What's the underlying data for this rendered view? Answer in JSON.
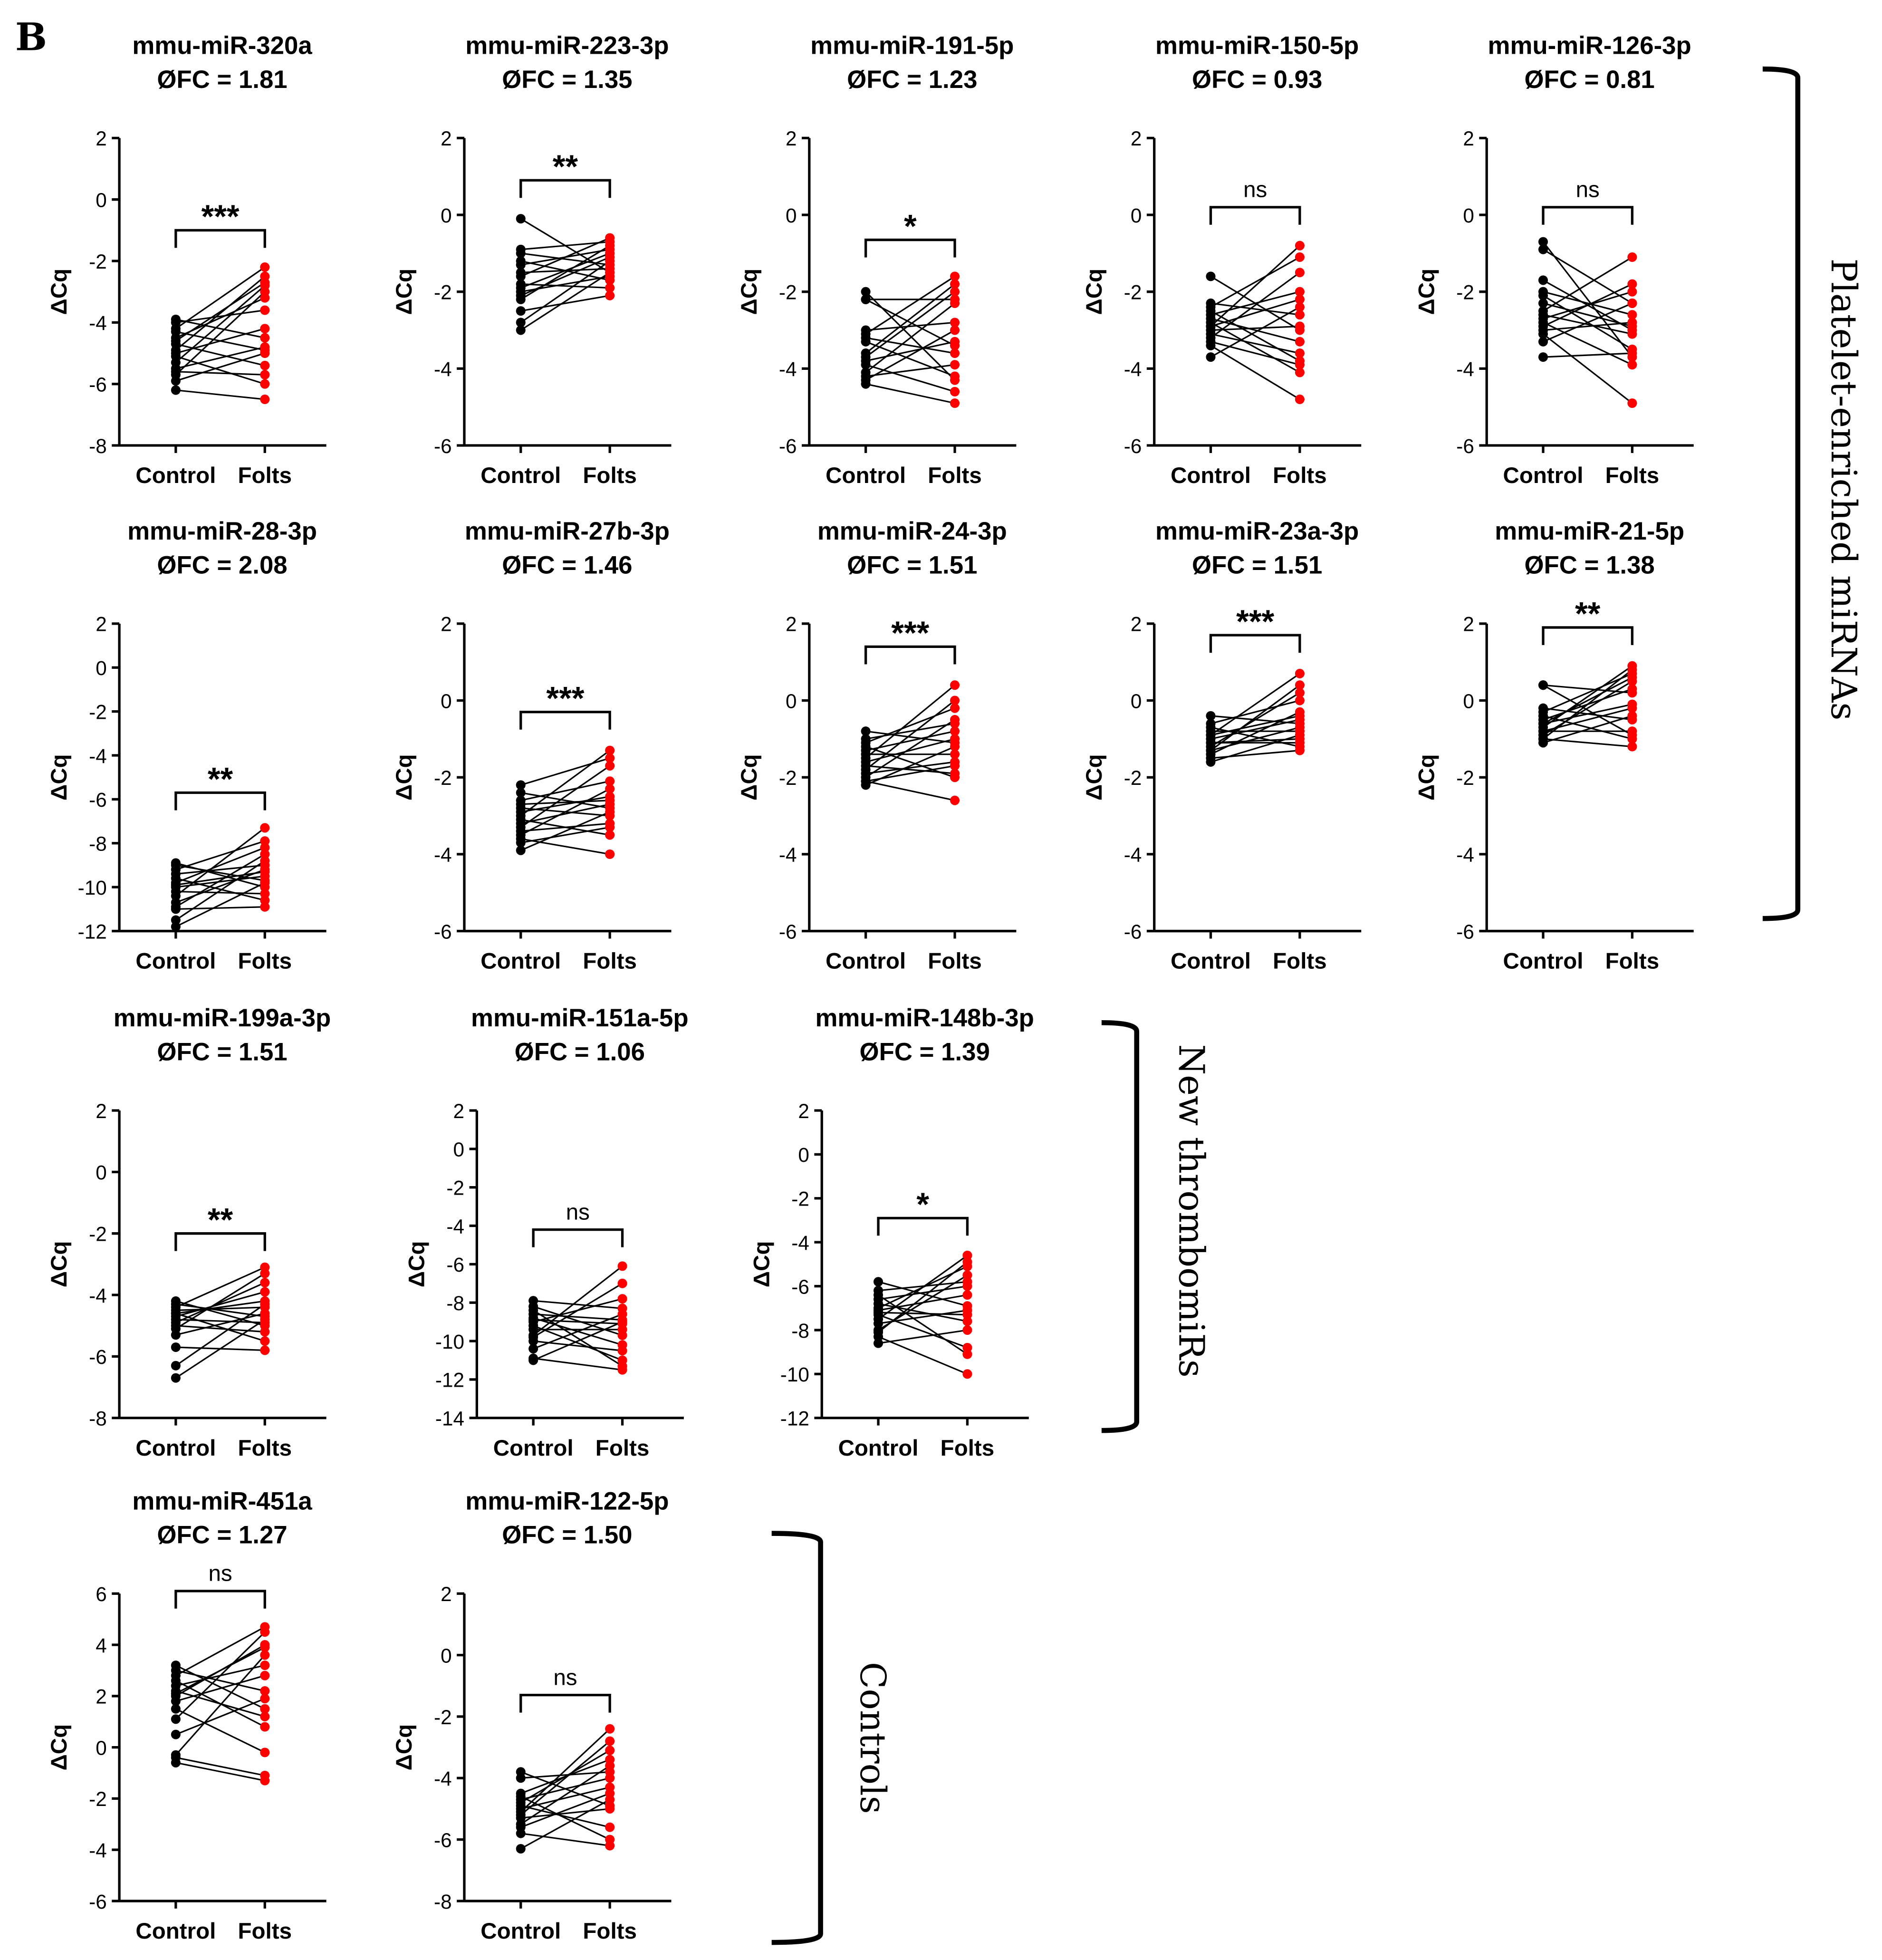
{
  "panel_label": "B",
  "colors": {
    "control": "#000000",
    "folts": "#ff0000",
    "line": "#000000"
  },
  "groups": [
    {
      "label": "Platelet-enriched miRNAs"
    },
    {
      "label": "New thrombomiRs"
    },
    {
      "label": "Controls"
    }
  ],
  "chart_data": [
    {
      "type": "scatter",
      "title": "mmu-miR-320a",
      "subtitle": "ØFC = 1.81",
      "ylabel": "ΔCq",
      "categories": [
        "Control",
        "Folts"
      ],
      "ylim": [
        -8,
        2
      ],
      "yticks": [
        2,
        0,
        -2,
        -4,
        -6,
        -8
      ],
      "significance": "***",
      "bracket_y": -1.0,
      "pairs": [
        [
          -6.2,
          -6.5
        ],
        [
          -5.9,
          -5.0
        ],
        [
          -5.7,
          -3.0
        ],
        [
          -5.5,
          -4.8
        ],
        [
          -5.3,
          -2.8
        ],
        [
          -5.1,
          -6.0
        ],
        [
          -5.0,
          -4.2
        ],
        [
          -4.9,
          -2.5
        ],
        [
          -4.7,
          -5.4
        ],
        [
          -4.5,
          -3.2
        ],
        [
          -4.3,
          -4.9
        ],
        [
          -4.2,
          -2.2
        ],
        [
          -4.0,
          -3.6
        ],
        [
          -3.9,
          -4.5
        ],
        [
          -5.6,
          -5.7
        ],
        [
          -4.6,
          -2.7
        ]
      ]
    },
    {
      "type": "scatter",
      "title": "mmu-miR-223-3p",
      "subtitle": "ØFC = 1.35",
      "ylabel": "ΔCq",
      "categories": [
        "Control",
        "Folts"
      ],
      "ylim": [
        -6,
        2
      ],
      "yticks": [
        2,
        0,
        -2,
        -4,
        -6
      ],
      "significance": "**",
      "bracket_y": 0.9,
      "pairs": [
        [
          -3.0,
          -1.5
        ],
        [
          -2.8,
          -1.2
        ],
        [
          -2.5,
          -2.1
        ],
        [
          -2.2,
          -0.8
        ],
        [
          -2.0,
          -1.6
        ],
        [
          -1.9,
          -1.0
        ],
        [
          -1.8,
          -1.9
        ],
        [
          -1.6,
          -0.6
        ],
        [
          -1.5,
          -1.4
        ],
        [
          -1.3,
          -0.9
        ],
        [
          -1.2,
          -1.7
        ],
        [
          -1.0,
          -1.3
        ],
        [
          -0.9,
          -0.7
        ],
        [
          -0.1,
          -1.5
        ],
        [
          -2.1,
          -1.1
        ]
      ]
    },
    {
      "type": "scatter",
      "title": "mmu-miR-191-5p",
      "subtitle": "ØFC = 1.23",
      "ylabel": "ΔCq",
      "categories": [
        "Control",
        "Folts"
      ],
      "ylim": [
        -6,
        2
      ],
      "yticks": [
        2,
        0,
        -2,
        -4,
        -6
      ],
      "significance": "*",
      "bracket_y": -0.65,
      "pairs": [
        [
          -4.4,
          -4.9
        ],
        [
          -4.3,
          -3.0
        ],
        [
          -4.1,
          -2.3
        ],
        [
          -3.9,
          -4.6
        ],
        [
          -3.8,
          -3.3
        ],
        [
          -3.7,
          -2.0
        ],
        [
          -3.3,
          -4.2
        ],
        [
          -3.2,
          -3.6
        ],
        [
          -3.1,
          -1.6
        ],
        [
          -3.0,
          -2.8
        ],
        [
          -2.2,
          -3.4
        ],
        [
          -2.0,
          -4.3
        ],
        [
          -2.2,
          -2.2
        ],
        [
          -3.6,
          -1.8
        ],
        [
          -4.2,
          -3.9
        ]
      ]
    },
    {
      "type": "scatter",
      "title": "mmu-miR-150-5p",
      "subtitle": "ØFC = 0.93",
      "ylabel": "ΔCq",
      "categories": [
        "Control",
        "Folts"
      ],
      "ylim": [
        -6,
        2
      ],
      "yticks": [
        2,
        0,
        -2,
        -4,
        -6
      ],
      "significance": "ns",
      "bracket_y": 0.2,
      "pairs": [
        [
          -3.7,
          -2.4
        ],
        [
          -3.4,
          -4.8
        ],
        [
          -3.2,
          -1.5
        ],
        [
          -3.1,
          -3.6
        ],
        [
          -3.0,
          -2.9
        ],
        [
          -2.9,
          -0.8
        ],
        [
          -2.8,
          -4.1
        ],
        [
          -2.7,
          -3.3
        ],
        [
          -2.6,
          -2.0
        ],
        [
          -2.5,
          -3.8
        ],
        [
          -2.4,
          -1.1
        ],
        [
          -2.3,
          -2.6
        ],
        [
          -1.6,
          -3.0
        ],
        [
          -3.3,
          -3.9
        ],
        [
          -2.9,
          -2.2
        ]
      ]
    },
    {
      "type": "scatter",
      "title": "mmu-miR-126-3p",
      "subtitle": "ØFC = 0.81",
      "ylabel": "ΔCq",
      "categories": [
        "Control",
        "Folts"
      ],
      "ylim": [
        -6,
        2
      ],
      "yticks": [
        2,
        0,
        -2,
        -4,
        -6
      ],
      "significance": "ns",
      "bracket_y": 0.2,
      "pairs": [
        [
          -3.7,
          -3.6
        ],
        [
          -3.3,
          -2.3
        ],
        [
          -3.1,
          -4.9
        ],
        [
          -3.0,
          -2.8
        ],
        [
          -2.9,
          -1.8
        ],
        [
          -2.8,
          -3.9
        ],
        [
          -2.6,
          -3.1
        ],
        [
          -2.5,
          -1.1
        ],
        [
          -2.3,
          -2.9
        ],
        [
          -2.1,
          -3.5
        ],
        [
          -2.0,
          -2.6
        ],
        [
          -1.7,
          -3.0
        ],
        [
          -0.9,
          -2.3
        ],
        [
          -0.7,
          -3.7
        ],
        [
          -2.7,
          -2.0
        ]
      ]
    },
    {
      "type": "scatter",
      "title": "mmu-miR-28-3p",
      "subtitle": "ØFC = 2.08",
      "ylabel": "ΔCq",
      "categories": [
        "Control",
        "Folts"
      ],
      "ylim": [
        -12,
        2
      ],
      "yticks": [
        2,
        0,
        -2,
        -4,
        -6,
        -8,
        -10,
        -12
      ],
      "significance": "**",
      "bracket_y": -5.7,
      "pairs": [
        [
          -11.8,
          -9.8
        ],
        [
          -11.5,
          -8.8
        ],
        [
          -11.0,
          -10.9
        ],
        [
          -10.7,
          -9.2
        ],
        [
          -10.4,
          -7.3
        ],
        [
          -10.2,
          -10.3
        ],
        [
          -10.0,
          -9.5
        ],
        [
          -9.8,
          -8.2
        ],
        [
          -9.6,
          -10.6
        ],
        [
          -9.4,
          -9.0
        ],
        [
          -9.2,
          -7.9
        ],
        [
          -9.0,
          -9.7
        ],
        [
          -8.9,
          -10.0
        ],
        [
          -10.9,
          -8.5
        ],
        [
          -9.9,
          -9.3
        ]
      ]
    },
    {
      "type": "scatter",
      "title": "mmu-miR-27b-3p",
      "subtitle": "ØFC = 1.46",
      "ylabel": "ΔCq",
      "categories": [
        "Control",
        "Folts"
      ],
      "ylim": [
        -6,
        2
      ],
      "yticks": [
        2,
        0,
        -2,
        -4,
        -6
      ],
      "significance": "***",
      "bracket_y": -0.3,
      "pairs": [
        [
          -3.9,
          -2.9
        ],
        [
          -3.6,
          -4.0
        ],
        [
          -3.5,
          -2.3
        ],
        [
          -3.4,
          -3.2
        ],
        [
          -3.3,
          -1.7
        ],
        [
          -3.2,
          -2.7
        ],
        [
          -3.1,
          -3.5
        ],
        [
          -3.0,
          -1.3
        ],
        [
          -2.9,
          -2.5
        ],
        [
          -2.8,
          -3.0
        ],
        [
          -2.6,
          -2.1
        ],
        [
          -2.4,
          -2.8
        ],
        [
          -2.2,
          -1.5
        ],
        [
          -3.7,
          -3.3
        ],
        [
          -2.7,
          -2.6
        ]
      ]
    },
    {
      "type": "scatter",
      "title": "mmu-miR-24-3p",
      "subtitle": "ØFC = 1.51",
      "ylabel": "ΔCq",
      "categories": [
        "Control",
        "Folts"
      ],
      "ylim": [
        -6,
        2
      ],
      "yticks": [
        2,
        0,
        -2,
        -4,
        -6
      ],
      "significance": "***",
      "bracket_y": 1.4,
      "pairs": [
        [
          -2.2,
          -1.2
        ],
        [
          -2.1,
          -2.6
        ],
        [
          -2.0,
          -0.5
        ],
        [
          -1.9,
          -1.6
        ],
        [
          -1.8,
          0.0
        ],
        [
          -1.7,
          -1.9
        ],
        [
          -1.6,
          -1.0
        ],
        [
          -1.5,
          0.4
        ],
        [
          -1.4,
          -1.4
        ],
        [
          -1.3,
          -0.8
        ],
        [
          -1.2,
          -2.0
        ],
        [
          -1.1,
          -0.2
        ],
        [
          -0.8,
          -1.1
        ],
        [
          -2.1,
          -1.7
        ],
        [
          -1.0,
          -0.6
        ]
      ]
    },
    {
      "type": "scatter",
      "title": "mmu-miR-23a-3p",
      "subtitle": "ØFC = 1.51",
      "ylabel": "ΔCq",
      "categories": [
        "Control",
        "Folts"
      ],
      "ylim": [
        -6,
        2
      ],
      "yticks": [
        2,
        0,
        -2,
        -4,
        -6
      ],
      "significance": "***",
      "bracket_y": 1.7,
      "pairs": [
        [
          -1.6,
          -0.9
        ],
        [
          -1.5,
          -1.3
        ],
        [
          -1.4,
          -0.3
        ],
        [
          -1.3,
          -0.7
        ],
        [
          -1.2,
          0.2
        ],
        [
          -1.1,
          -1.1
        ],
        [
          -1.0,
          -0.5
        ],
        [
          -0.9,
          0.7
        ],
        [
          -0.8,
          -0.8
        ],
        [
          -0.7,
          -1.2
        ],
        [
          -0.6,
          0.0
        ],
        [
          -0.4,
          -0.6
        ],
        [
          -1.3,
          0.4
        ],
        [
          -1.1,
          -1.0
        ],
        [
          -0.9,
          -0.4
        ]
      ]
    },
    {
      "type": "scatter",
      "title": "mmu-miR-21-5p",
      "subtitle": "ØFC = 1.38",
      "ylabel": "ΔCq",
      "categories": [
        "Control",
        "Folts"
      ],
      "ylim": [
        -6,
        2
      ],
      "yticks": [
        2,
        0,
        -2,
        -4,
        -6
      ],
      "significance": "**",
      "bracket_y": 1.9,
      "pairs": [
        [
          -1.1,
          -0.4
        ],
        [
          -1.0,
          -1.2
        ],
        [
          -0.9,
          0.5
        ],
        [
          -0.8,
          -0.8
        ],
        [
          -0.7,
          0.9
        ],
        [
          -0.6,
          -0.1
        ],
        [
          -0.5,
          0.3
        ],
        [
          -0.4,
          -1.0
        ],
        [
          -0.3,
          0.7
        ],
        [
          -0.2,
          -0.5
        ],
        [
          0.4,
          0.2
        ],
        [
          0.4,
          -0.9
        ],
        [
          -1.0,
          0.8
        ],
        [
          -0.6,
          0.6
        ],
        [
          -0.8,
          -0.2
        ]
      ]
    },
    {
      "type": "scatter",
      "title": "mmu-miR-199a-3p",
      "subtitle": "ØFC = 1.51",
      "ylabel": "ΔCq",
      "categories": [
        "Control",
        "Folts"
      ],
      "ylim": [
        -8,
        2
      ],
      "yticks": [
        2,
        0,
        -2,
        -4,
        -6,
        -8
      ],
      "significance": "**",
      "bracket_y": -2.0,
      "pairs": [
        [
          -6.7,
          -4.8
        ],
        [
          -6.3,
          -4.3
        ],
        [
          -5.7,
          -5.8
        ],
        [
          -5.3,
          -4.6
        ],
        [
          -5.1,
          -3.3
        ],
        [
          -5.0,
          -5.2
        ],
        [
          -4.8,
          -4.9
        ],
        [
          -4.7,
          -3.9
        ],
        [
          -4.6,
          -5.5
        ],
        [
          -4.5,
          -4.4
        ],
        [
          -4.4,
          -3.1
        ],
        [
          -4.3,
          -4.7
        ],
        [
          -4.2,
          -5.0
        ],
        [
          -4.9,
          -3.6
        ],
        [
          -4.6,
          -4.2
        ]
      ]
    },
    {
      "type": "scatter",
      "title": "mmu-miR-151a-5p",
      "subtitle": "ØFC = 1.06",
      "ylabel": "ΔCq",
      "categories": [
        "Control",
        "Folts"
      ],
      "ylim": [
        -14,
        2
      ],
      "yticks": [
        2,
        0,
        -2,
        -4,
        -6,
        -8,
        -10,
        -12,
        -14
      ],
      "significance": "ns",
      "bracket_y": -4.2,
      "pairs": [
        [
          -11.0,
          -9.0
        ],
        [
          -10.9,
          -11.5
        ],
        [
          -10.4,
          -8.6
        ],
        [
          -10.0,
          -10.5
        ],
        [
          -9.7,
          -6.1
        ],
        [
          -9.4,
          -9.4
        ],
        [
          -9.2,
          -11.0
        ],
        [
          -9.0,
          -7.8
        ],
        [
          -8.8,
          -10.2
        ],
        [
          -8.6,
          -8.9
        ],
        [
          -8.4,
          -11.3
        ],
        [
          -8.2,
          -9.7
        ],
        [
          -7.9,
          -8.3
        ],
        [
          -9.8,
          -7.0
        ],
        [
          -8.9,
          -9.1
        ]
      ]
    },
    {
      "type": "scatter",
      "title": "mmu-miR-148b-3p",
      "subtitle": "ØFC = 1.39",
      "ylabel": "ΔCq",
      "categories": [
        "Control",
        "Folts"
      ],
      "ylim": [
        -12,
        2
      ],
      "yticks": [
        2,
        0,
        -2,
        -4,
        -6,
        -8,
        -10,
        -12
      ],
      "significance": "*",
      "bracket_y": -2.9,
      "pairs": [
        [
          -8.6,
          -8.0
        ],
        [
          -8.3,
          -10.0
        ],
        [
          -8.0,
          -5.5
        ],
        [
          -7.7,
          -7.1
        ],
        [
          -7.5,
          -4.6
        ],
        [
          -7.3,
          -8.8
        ],
        [
          -7.1,
          -6.4
        ],
        [
          -7.0,
          -5.1
        ],
        [
          -6.8,
          -7.6
        ],
        [
          -6.6,
          -6.0
        ],
        [
          -6.4,
          -9.1
        ],
        [
          -6.2,
          -5.8
        ],
        [
          -5.8,
          -6.9
        ],
        [
          -8.1,
          -4.9
        ],
        [
          -7.2,
          -7.3
        ]
      ]
    },
    {
      "type": "scatter",
      "title": "mmu-miR-451a",
      "subtitle": "ØFC = 1.27",
      "ylabel": "ΔCq",
      "categories": [
        "Control",
        "Folts"
      ],
      "ylim": [
        -6,
        6
      ],
      "yticks": [
        6,
        4,
        2,
        0,
        -2,
        -4,
        -6
      ],
      "significance": "ns",
      "bracket_y": 6.1,
      "pairs": [
        [
          -0.6,
          -1.3
        ],
        [
          -0.4,
          -1.1
        ],
        [
          -0.3,
          3.6
        ],
        [
          0.5,
          1.9
        ],
        [
          1.1,
          4.5
        ],
        [
          1.5,
          -0.2
        ],
        [
          1.8,
          2.8
        ],
        [
          2.0,
          4.0
        ],
        [
          2.2,
          1.2
        ],
        [
          2.4,
          3.2
        ],
        [
          2.6,
          0.8
        ],
        [
          2.8,
          4.7
        ],
        [
          3.0,
          2.2
        ],
        [
          3.2,
          1.5
        ],
        [
          2.1,
          3.9
        ]
      ]
    },
    {
      "type": "scatter",
      "title": "mmu-miR-122-5p",
      "subtitle": "ØFC = 1.50",
      "ylabel": "ΔCq",
      "categories": [
        "Control",
        "Folts"
      ],
      "ylim": [
        -8,
        2
      ],
      "yticks": [
        2,
        0,
        -2,
        -4,
        -6,
        -8
      ],
      "significance": "ns",
      "bracket_y": -1.3,
      "pairs": [
        [
          -6.3,
          -4.7
        ],
        [
          -5.8,
          -6.2
        ],
        [
          -5.5,
          -3.6
        ],
        [
          -5.3,
          -5.0
        ],
        [
          -5.1,
          -2.4
        ],
        [
          -5.0,
          -4.3
        ],
        [
          -4.9,
          -5.6
        ],
        [
          -4.8,
          -3.1
        ],
        [
          -4.7,
          -4.0
        ],
        [
          -4.6,
          -6.0
        ],
        [
          -4.0,
          -3.8
        ],
        [
          -3.8,
          -4.9
        ],
        [
          -5.2,
          -2.8
        ],
        [
          -4.5,
          -3.4
        ],
        [
          -5.6,
          -4.5
        ]
      ]
    }
  ]
}
